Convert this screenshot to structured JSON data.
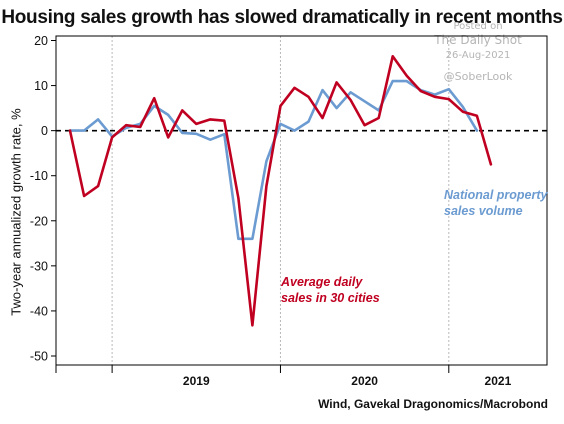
{
  "title": "Housing sales growth has slowed dramatically in recent months",
  "watermark": {
    "line1": "Posted on",
    "line2": "The Daily Shot",
    "line3": "26-Aug-2021",
    "line4": "@SoberLook"
  },
  "source": "Wind, Gavekal Dragonomics/Macrobond",
  "chart_data": {
    "type": "line",
    "title": "Housing sales growth has slowed dramatically in recent months",
    "ylabel": "Two-year annualized growth rate, %",
    "xlabel": "",
    "ylim": [
      -52,
      21
    ],
    "yticks": [
      20,
      10,
      0,
      -10,
      -20,
      -30,
      -40,
      -50
    ],
    "ytick_labels": [
      "20",
      "10",
      "0",
      "-10",
      "-20",
      "-30",
      "-40",
      "-50"
    ],
    "xlim": [
      "2018-09",
      "2021-08"
    ],
    "year_labels": [
      "2019",
      "2020",
      "2021"
    ],
    "grid": "vertical dotted at year boundaries",
    "zero_line": "dashed black",
    "series": [
      {
        "name": "Average daily sales in 30 cities",
        "label_lines": [
          "Average daily",
          "sales in 30 cities"
        ],
        "color": "#c00020",
        "x": [
          "2018-10",
          "2018-11",
          "2018-12",
          "2019-01",
          "2019-02",
          "2019-03",
          "2019-04",
          "2019-05",
          "2019-06",
          "2019-07",
          "2019-08",
          "2019-09",
          "2019-10",
          "2019-11",
          "2019-12",
          "2020-01",
          "2020-02",
          "2020-03",
          "2020-04",
          "2020-05",
          "2020-06",
          "2020-07",
          "2020-08",
          "2020-09",
          "2020-10",
          "2020-11",
          "2020-12",
          "2021-01",
          "2021-02",
          "2021-03",
          "2021-04",
          "2021-05",
          "2021-06",
          "2021-07"
        ],
        "y": [
          0,
          -14.5,
          -12.3,
          -1.5,
          1.2,
          0.8,
          7.2,
          -1.5,
          4.5,
          1.5,
          2.5,
          2.2,
          -15,
          -43.2,
          -12.3,
          5.5,
          9.5,
          7.5,
          2.8,
          10.7,
          6.8,
          1.2,
          2.8,
          16.5,
          12.2,
          8.8,
          7.5,
          7,
          4.2,
          3.3,
          -7.5,
          null,
          null,
          null
        ]
      },
      {
        "name": "National property sales volume",
        "label_lines": [
          "National property",
          "sales volume"
        ],
        "color": "#6b9bd1",
        "x": [
          "2018-10",
          "2018-11",
          "2018-12",
          "2019-01",
          "2019-02",
          "2019-03",
          "2019-04",
          "2019-05",
          "2019-06",
          "2019-07",
          "2019-08",
          "2019-09",
          "2019-10",
          "2019-11",
          "2019-12",
          "2020-01",
          "2020-02",
          "2020-03",
          "2020-04",
          "2020-05",
          "2020-06",
          "2020-07",
          "2020-08",
          "2020-09",
          "2020-10",
          "2020-11",
          "2020-12",
          "2021-01",
          "2021-02",
          "2021-03",
          "2021-04",
          "2021-05",
          "2021-06",
          "2021-07"
        ],
        "y": [
          0,
          0,
          2.5,
          -1.3,
          0.6,
          1.5,
          5.5,
          3.5,
          -0.5,
          -0.7,
          -2,
          -0.8,
          -24,
          -24,
          -6.8,
          1.5,
          0,
          2,
          9,
          5,
          8.5,
          6.5,
          4.5,
          11,
          11,
          9,
          8,
          9.2,
          5.3,
          0,
          null,
          null,
          null,
          null
        ]
      }
    ]
  }
}
